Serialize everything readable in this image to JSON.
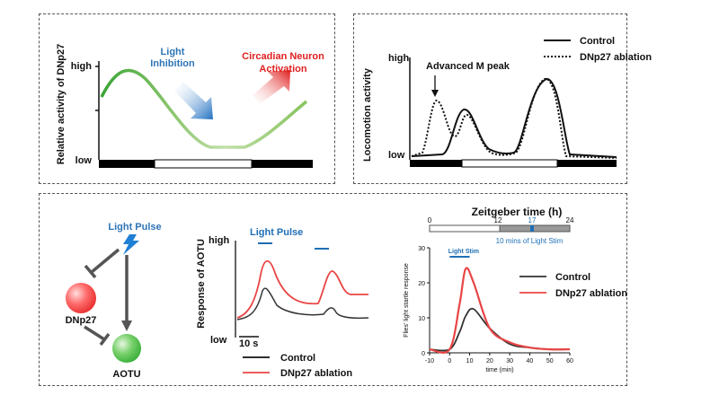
{
  "panel_a": {
    "ylabel": "Relative activity of DNp27",
    "tick_high": "high",
    "tick_low": "low",
    "light_label_1": "Light",
    "light_label_2": "Inhibition",
    "circ_label_1": "Circadian Neuron",
    "circ_label_2": "Activation",
    "colors": {
      "light": "#2e75b6",
      "circadian": "#e02020",
      "curve_dark": "#3aa535",
      "curve_light": "#a9d18e"
    }
  },
  "panel_b": {
    "ylabel": "Locomotion activity",
    "tick_high": "high",
    "tick_low": "low",
    "annotation": "Advanced M peak",
    "legend": {
      "control": "Control",
      "ablation": "DNp27 ablation"
    }
  },
  "panel_c": {
    "schematic": {
      "light_pulse": "Light Pulse",
      "dnp27": "DNp27",
      "aotu": "AOTU",
      "colors": {
        "dnp27": "#ff5a5a",
        "aotu": "#5ec95e",
        "bolt": "#1f7fd4"
      }
    },
    "trace": {
      "ylabel": "Response of AOTU",
      "tick_high": "high",
      "tick_low": "low",
      "light_pulse": "Light Pulse",
      "scale_bar": "10 s",
      "legend": {
        "control": "Control",
        "ablation": "DNp27 ablation"
      },
      "colors": {
        "control": "#333333",
        "ablation": "#e94545",
        "pulse": "#1f6fb5"
      }
    },
    "zeitgeber": {
      "title": "Zeitgeber time (h)",
      "ticks": [
        "0",
        "12",
        "17",
        "24"
      ],
      "stim_note": "10 mins of Light Stim"
    },
    "startle": {
      "ylabel": "Flies' light startle response",
      "xlabel": "time (min)",
      "stim_label": "Light Stim",
      "legend": {
        "control": "Control",
        "ablation": "DNp27 ablation"
      }
    }
  },
  "chart_data": [
    {
      "type": "line",
      "xlabel": "time (min)",
      "ylabel": "Flies' light startle response",
      "x": [
        -10,
        0,
        5,
        8,
        12,
        20,
        30,
        40,
        50,
        60
      ],
      "series": [
        {
          "name": "Control",
          "values": [
            1,
            1,
            6,
            10.5,
            12.5,
            7,
            2.5,
            1.5,
            1,
            1
          ]
        },
        {
          "name": "DNp27 ablation",
          "values": [
            1,
            1,
            14,
            24,
            20,
            7,
            3,
            1.5,
            1,
            1
          ]
        }
      ],
      "xticks": [
        "-10",
        "0",
        "10",
        "20",
        "30",
        "40",
        "50",
        "60"
      ],
      "yticks": [
        "0",
        "10",
        "20",
        "30"
      ],
      "xlim": [
        -10,
        60
      ],
      "ylim": [
        0,
        30
      ],
      "legend_position": "right"
    }
  ]
}
